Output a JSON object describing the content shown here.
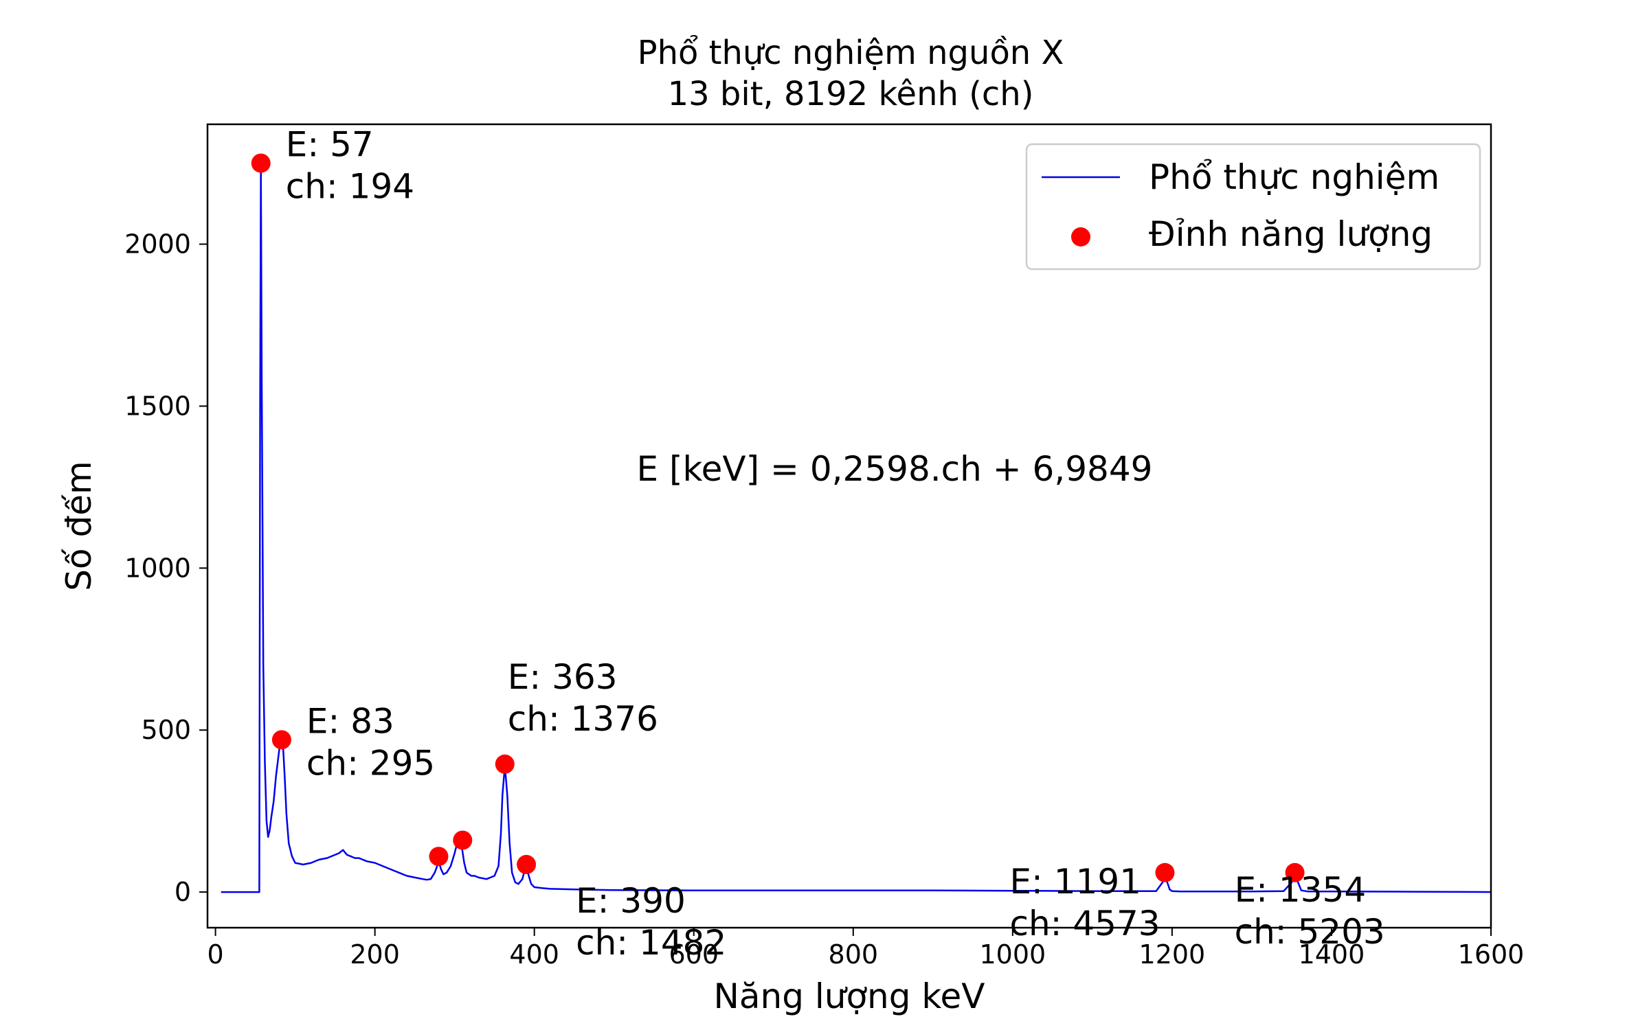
{
  "chart_data": {
    "type": "line",
    "title": "Phổ thực nghiệm nguồn X",
    "subtitle": "13 bit, 8192 kênh (ch)",
    "xlabel": "Năng lượng keV",
    "ylabel": "Số đếm",
    "xlim": [
      -10,
      1600
    ],
    "ylim": [
      -110,
      2370
    ],
    "xticks": [
      0,
      200,
      400,
      600,
      800,
      1000,
      1200,
      1400,
      1600
    ],
    "yticks": [
      0,
      500,
      1000,
      1500,
      2000
    ],
    "grid": false,
    "legend_position": "top-right",
    "formula": "E [keV] = 0,2598.ch + 6,9849",
    "colors": {
      "spectrum": "#0000ee",
      "peaks": "#ff0000"
    },
    "series": [
      {
        "name": "Phổ thực nghiệm",
        "kind": "line",
        "x": [
          7,
          50,
          55,
          56,
          57,
          58,
          60,
          62,
          64,
          66,
          68,
          70,
          73,
          76,
          79,
          81,
          83,
          85,
          87,
          89,
          92,
          96,
          100,
          110,
          120,
          130,
          140,
          150,
          155,
          160,
          165,
          170,
          175,
          180,
          190,
          200,
          210,
          220,
          230,
          240,
          250,
          260,
          265,
          270,
          275,
          278,
          280,
          283,
          286,
          290,
          295,
          300,
          303,
          306,
          309,
          312,
          315,
          318,
          321,
          325,
          330,
          340,
          350,
          355,
          358,
          360,
          363,
          366,
          369,
          372,
          376,
          380,
          385,
          388,
          390,
          393,
          396,
          400,
          410,
          420,
          450,
          500,
          600,
          700,
          800,
          900,
          1000,
          1100,
          1150,
          1180,
          1188,
          1191,
          1194,
          1197,
          1200,
          1210,
          1250,
          1300,
          1340,
          1350,
          1354,
          1358,
          1362,
          1370,
          1400,
          1500,
          1600
        ],
        "y": [
          0,
          0,
          0,
          1500,
          2240,
          1600,
          700,
          400,
          220,
          170,
          190,
          230,
          280,
          360,
          420,
          460,
          470,
          440,
          350,
          240,
          150,
          110,
          90,
          85,
          90,
          100,
          105,
          115,
          120,
          130,
          115,
          110,
          105,
          105,
          95,
          90,
          80,
          70,
          60,
          50,
          45,
          40,
          38,
          40,
          60,
          80,
          95,
          70,
          55,
          60,
          80,
          120,
          150,
          160,
          140,
          90,
          60,
          55,
          50,
          50,
          45,
          40,
          50,
          80,
          180,
          300,
          390,
          300,
          150,
          60,
          30,
          25,
          40,
          70,
          80,
          50,
          25,
          15,
          12,
          10,
          8,
          6,
          5,
          5,
          5,
          5,
          4,
          3,
          3,
          3,
          30,
          45,
          30,
          8,
          3,
          2,
          2,
          2,
          3,
          30,
          45,
          30,
          5,
          2,
          2,
          1,
          0
        ]
      },
      {
        "name": "Đỉnh năng lượng",
        "kind": "scatter",
        "x": [
          57,
          83,
          280,
          310,
          363,
          390,
          1191,
          1354
        ],
        "y": [
          2250,
          470,
          110,
          160,
          395,
          85,
          60,
          60
        ]
      }
    ],
    "annotations": [
      {
        "x": 57,
        "y": 2250,
        "line1": "E: 57",
        "line2": "ch: 194"
      },
      {
        "x": 83,
        "y": 470,
        "line1": "E: 83",
        "line2": "ch: 295"
      },
      {
        "x": 363,
        "y": 395,
        "line1": "E: 363",
        "line2": "ch: 1376"
      },
      {
        "x": 390,
        "y": 85,
        "line1": "E: 390",
        "line2": "ch: 1482"
      },
      {
        "x": 1191,
        "y": 60,
        "line1": "E: 1191",
        "line2": "ch: 4573"
      },
      {
        "x": 1354,
        "y": 60,
        "line1": "E: 1354",
        "line2": "ch: 5203"
      }
    ]
  }
}
